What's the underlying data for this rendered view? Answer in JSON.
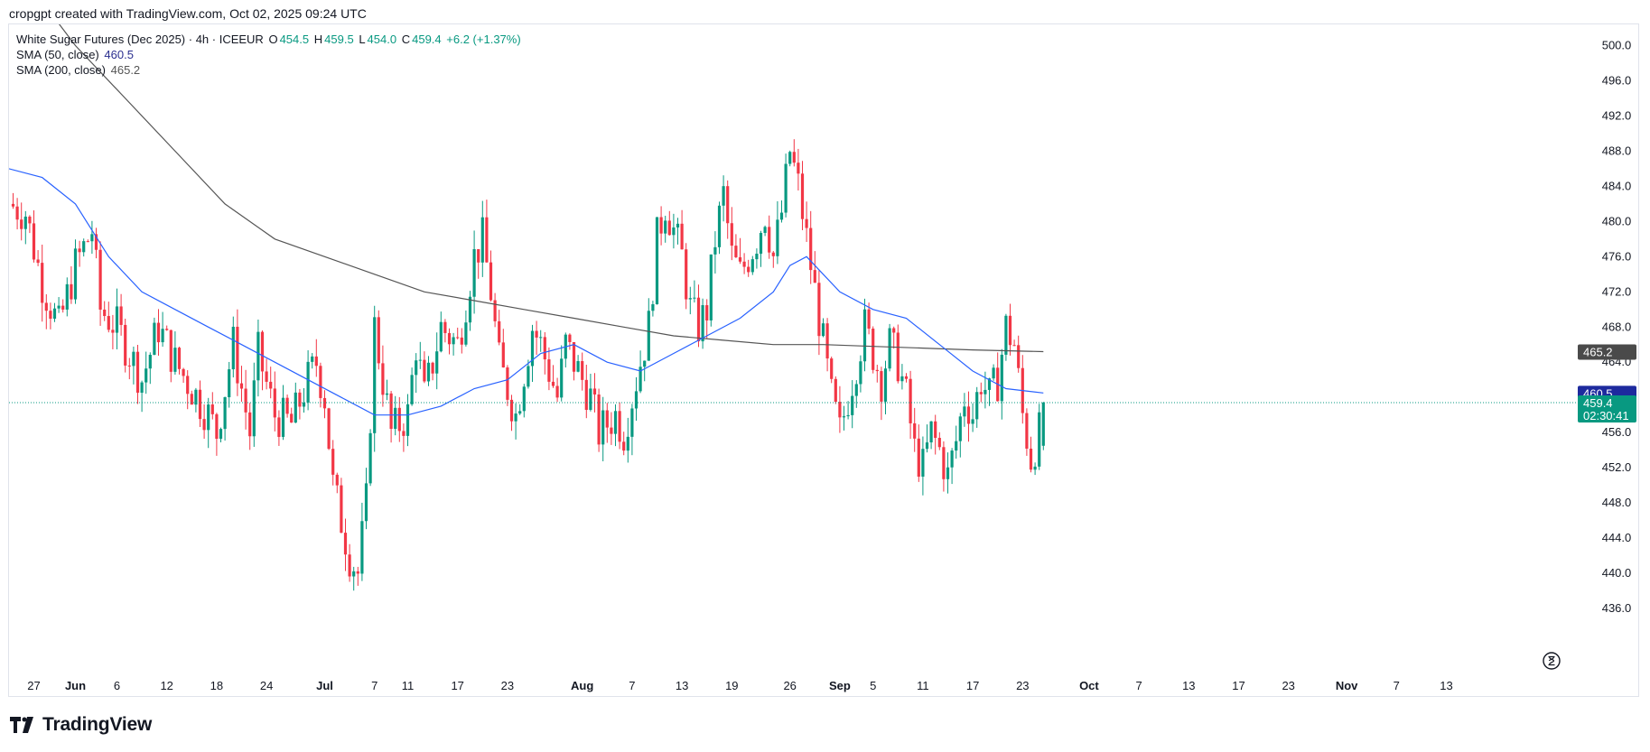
{
  "caption": "cropgpt created with TradingView.com, Oct 02, 2025 09:24 UTC",
  "legend": {
    "symbol": "White Sugar Futures (Dec 2025) · 4h · ICEEUR",
    "o_label": "O",
    "o_val": "454.5",
    "h_label": "H",
    "h_val": "459.5",
    "l_label": "L",
    "l_val": "454.0",
    "c_label": "C",
    "c_val": "459.4",
    "change": "+6.2 (+1.37%)",
    "sma50_label": "SMA (50, close)",
    "sma50_val": "460.5",
    "sma200_label": "SMA (200, close)",
    "sma200_val": "465.2"
  },
  "brand": "TradingView",
  "colors": {
    "up": "#089981",
    "down": "#f23645",
    "sma50": "#2962ff",
    "sma200": "#555555",
    "sma50_badge": "#1d2a9e",
    "sma200_badge": "#4a4a4a",
    "price_badge": "#089981",
    "grid": "#e0e3eb"
  },
  "chart_data": {
    "type": "candlestick",
    "y_axis": {
      "min": 432,
      "max": 502,
      "ticks": [
        500.0,
        496.0,
        492.0,
        488.0,
        484.0,
        480.0,
        476.0,
        472.0,
        468.0,
        464.0,
        460.0,
        456.0,
        452.0,
        448.0,
        444.0,
        440.0,
        436.0
      ],
      "tick_labels": [
        "500.0",
        "496.0",
        "492.0",
        "488.0",
        "484.0",
        "480.0",
        "476.0",
        "472.0",
        "468.0",
        "464.0",
        "460.0",
        "456.0",
        "452.0",
        "448.0",
        "444.0",
        "440.0",
        "436.0"
      ]
    },
    "x_axis": {
      "labels": [
        {
          "label": "27",
          "day": -5,
          "bold": false
        },
        {
          "label": "Jun",
          "day": 0,
          "bold": true
        },
        {
          "label": "6",
          "day": 5,
          "bold": false
        },
        {
          "label": "12",
          "day": 11,
          "bold": false
        },
        {
          "label": "18",
          "day": 17,
          "bold": false
        },
        {
          "label": "24",
          "day": 23,
          "bold": false
        },
        {
          "label": "Jul",
          "day": 30,
          "bold": true
        },
        {
          "label": "7",
          "day": 36,
          "bold": false
        },
        {
          "label": "11",
          "day": 40,
          "bold": false
        },
        {
          "label": "17",
          "day": 46,
          "bold": false
        },
        {
          "label": "23",
          "day": 52,
          "bold": false
        },
        {
          "label": "Aug",
          "day": 61,
          "bold": true
        },
        {
          "label": "7",
          "day": 67,
          "bold": false
        },
        {
          "label": "13",
          "day": 73,
          "bold": false
        },
        {
          "label": "19",
          "day": 79,
          "bold": false
        },
        {
          "label": "26",
          "day": 86,
          "bold": false
        },
        {
          "label": "Sep",
          "day": 92,
          "bold": true
        },
        {
          "label": "5",
          "day": 96,
          "bold": false
        },
        {
          "label": "11",
          "day": 102,
          "bold": false
        },
        {
          "label": "17",
          "day": 108,
          "bold": false
        },
        {
          "label": "23",
          "day": 114,
          "bold": false
        },
        {
          "label": "Oct",
          "day": 122,
          "bold": true
        },
        {
          "label": "7",
          "day": 128,
          "bold": false
        },
        {
          "label": "13",
          "day": 134,
          "bold": false
        },
        {
          "label": "17",
          "day": 140,
          "bold": false
        },
        {
          "label": "23",
          "day": 146,
          "bold": false
        },
        {
          "label": "Nov",
          "day": 153,
          "bold": true
        },
        {
          "label": "7",
          "day": 159,
          "bold": false
        },
        {
          "label": "13",
          "day": 165,
          "bold": false
        }
      ]
    },
    "last_price": 459.4,
    "countdown": "02:30:41",
    "sma50_last": 460.5,
    "sma200_last": 465.2,
    "close_path": [
      {
        "day": -8,
        "close": 482
      },
      {
        "day": -6,
        "close": 481
      },
      {
        "day": -4,
        "close": 473
      },
      {
        "day": -2,
        "close": 468
      },
      {
        "day": 0,
        "close": 475
      },
      {
        "day": 2,
        "close": 479
      },
      {
        "day": 3,
        "close": 470
      },
      {
        "day": 5,
        "close": 468
      },
      {
        "day": 7,
        "close": 464
      },
      {
        "day": 8,
        "close": 462
      },
      {
        "day": 10,
        "close": 468
      },
      {
        "day": 12,
        "close": 464
      },
      {
        "day": 14,
        "close": 461
      },
      {
        "day": 16,
        "close": 458
      },
      {
        "day": 17,
        "close": 456
      },
      {
        "day": 19,
        "close": 466
      },
      {
        "day": 21,
        "close": 456
      },
      {
        "day": 22,
        "close": 465
      },
      {
        "day": 24,
        "close": 458
      },
      {
        "day": 26,
        "close": 457
      },
      {
        "day": 28,
        "close": 462
      },
      {
        "day": 29,
        "close": 464
      },
      {
        "day": 30,
        "close": 460
      },
      {
        "day": 31,
        "close": 450
      },
      {
        "day": 32,
        "close": 446
      },
      {
        "day": 33,
        "close": 442
      },
      {
        "day": 34,
        "close": 440
      },
      {
        "day": 35,
        "close": 448
      },
      {
        "day": 36,
        "close": 468
      },
      {
        "day": 37,
        "close": 462
      },
      {
        "day": 38,
        "close": 456
      },
      {
        "day": 40,
        "close": 458
      },
      {
        "day": 41,
        "close": 466
      },
      {
        "day": 42,
        "close": 460
      },
      {
        "day": 44,
        "close": 468
      },
      {
        "day": 46,
        "close": 466
      },
      {
        "day": 48,
        "close": 476
      },
      {
        "day": 49,
        "close": 478
      },
      {
        "day": 50,
        "close": 472
      },
      {
        "day": 51,
        "close": 464
      },
      {
        "day": 53,
        "close": 458
      },
      {
        "day": 55,
        "close": 468
      },
      {
        "day": 56,
        "close": 466
      },
      {
        "day": 58,
        "close": 460
      },
      {
        "day": 59,
        "close": 466
      },
      {
        "day": 61,
        "close": 462
      },
      {
        "day": 62,
        "close": 460
      },
      {
        "day": 63,
        "close": 456
      },
      {
        "day": 65,
        "close": 458
      },
      {
        "day": 66,
        "close": 456
      },
      {
        "day": 67,
        "close": 460
      },
      {
        "day": 68,
        "close": 464
      },
      {
        "day": 69,
        "close": 468
      },
      {
        "day": 70,
        "close": 478
      },
      {
        "day": 71,
        "close": 482
      },
      {
        "day": 72,
        "close": 479
      },
      {
        "day": 73,
        "close": 476
      },
      {
        "day": 74,
        "close": 470
      },
      {
        "day": 75,
        "close": 468
      },
      {
        "day": 76,
        "close": 470
      },
      {
        "day": 77,
        "close": 478
      },
      {
        "day": 78,
        "close": 483
      },
      {
        "day": 79,
        "close": 476
      },
      {
        "day": 80,
        "close": 474
      },
      {
        "day": 81,
        "close": 476
      },
      {
        "day": 82,
        "close": 478
      },
      {
        "day": 83,
        "close": 481
      },
      {
        "day": 84,
        "close": 476
      },
      {
        "day": 85,
        "close": 481
      },
      {
        "day": 86,
        "close": 488
      },
      {
        "day": 87,
        "close": 484
      },
      {
        "day": 88,
        "close": 478
      },
      {
        "day": 89,
        "close": 472
      },
      {
        "day": 90,
        "close": 466
      },
      {
        "day": 91,
        "close": 460
      },
      {
        "day": 92,
        "close": 456
      },
      {
        "day": 93,
        "close": 460
      },
      {
        "day": 94,
        "close": 464
      },
      {
        "day": 95,
        "close": 468
      },
      {
        "day": 96,
        "close": 465
      },
      {
        "day": 97,
        "close": 462
      },
      {
        "day": 98,
        "close": 466
      },
      {
        "day": 99,
        "close": 464
      },
      {
        "day": 100,
        "close": 460
      },
      {
        "day": 101,
        "close": 454
      },
      {
        "day": 102,
        "close": 452
      },
      {
        "day": 103,
        "close": 456
      },
      {
        "day": 104,
        "close": 454
      },
      {
        "day": 105,
        "close": 451
      },
      {
        "day": 106,
        "close": 455
      },
      {
        "day": 107,
        "close": 460
      },
      {
        "day": 108,
        "close": 458
      },
      {
        "day": 109,
        "close": 462
      },
      {
        "day": 110,
        "close": 460
      },
      {
        "day": 111,
        "close": 462
      },
      {
        "day": 112,
        "close": 468
      },
      {
        "day": 113,
        "close": 466
      },
      {
        "day": 114,
        "close": 458
      },
      {
        "day": 115,
        "close": 453
      },
      {
        "day": 116,
        "close": 456
      },
      {
        "day": 116.5,
        "close": 459.4
      }
    ],
    "sma50_path": [
      {
        "day": -8,
        "value": 486
      },
      {
        "day": -4,
        "value": 485
      },
      {
        "day": 0,
        "value": 482
      },
      {
        "day": 4,
        "value": 476
      },
      {
        "day": 8,
        "value": 472
      },
      {
        "day": 12,
        "value": 470
      },
      {
        "day": 16,
        "value": 468
      },
      {
        "day": 20,
        "value": 466
      },
      {
        "day": 24,
        "value": 464
      },
      {
        "day": 28,
        "value": 462
      },
      {
        "day": 32,
        "value": 460
      },
      {
        "day": 36,
        "value": 458
      },
      {
        "day": 40,
        "value": 458
      },
      {
        "day": 44,
        "value": 459
      },
      {
        "day": 48,
        "value": 461
      },
      {
        "day": 52,
        "value": 462
      },
      {
        "day": 56,
        "value": 465
      },
      {
        "day": 60,
        "value": 466
      },
      {
        "day": 64,
        "value": 464
      },
      {
        "day": 68,
        "value": 463
      },
      {
        "day": 72,
        "value": 465
      },
      {
        "day": 76,
        "value": 467
      },
      {
        "day": 80,
        "value": 469
      },
      {
        "day": 84,
        "value": 472
      },
      {
        "day": 86,
        "value": 475
      },
      {
        "day": 88,
        "value": 476
      },
      {
        "day": 90,
        "value": 474
      },
      {
        "day": 92,
        "value": 472
      },
      {
        "day": 96,
        "value": 470
      },
      {
        "day": 100,
        "value": 469
      },
      {
        "day": 104,
        "value": 466
      },
      {
        "day": 108,
        "value": 463
      },
      {
        "day": 112,
        "value": 461
      },
      {
        "day": 116.5,
        "value": 460.5
      }
    ],
    "sma200_path": [
      {
        "day": -8,
        "value": 512
      },
      {
        "day": -4,
        "value": 505
      },
      {
        "day": 0,
        "value": 500
      },
      {
        "day": 6,
        "value": 494
      },
      {
        "day": 12,
        "value": 488
      },
      {
        "day": 18,
        "value": 482
      },
      {
        "day": 24,
        "value": 478
      },
      {
        "day": 30,
        "value": 476
      },
      {
        "day": 36,
        "value": 474
      },
      {
        "day": 42,
        "value": 472
      },
      {
        "day": 48,
        "value": 471
      },
      {
        "day": 54,
        "value": 470
      },
      {
        "day": 60,
        "value": 469
      },
      {
        "day": 66,
        "value": 468
      },
      {
        "day": 72,
        "value": 467
      },
      {
        "day": 78,
        "value": 466.5
      },
      {
        "day": 84,
        "value": 466
      },
      {
        "day": 90,
        "value": 466
      },
      {
        "day": 96,
        "value": 465.8
      },
      {
        "day": 102,
        "value": 465.6
      },
      {
        "day": 108,
        "value": 465.4
      },
      {
        "day": 116.5,
        "value": 465.2
      }
    ]
  }
}
